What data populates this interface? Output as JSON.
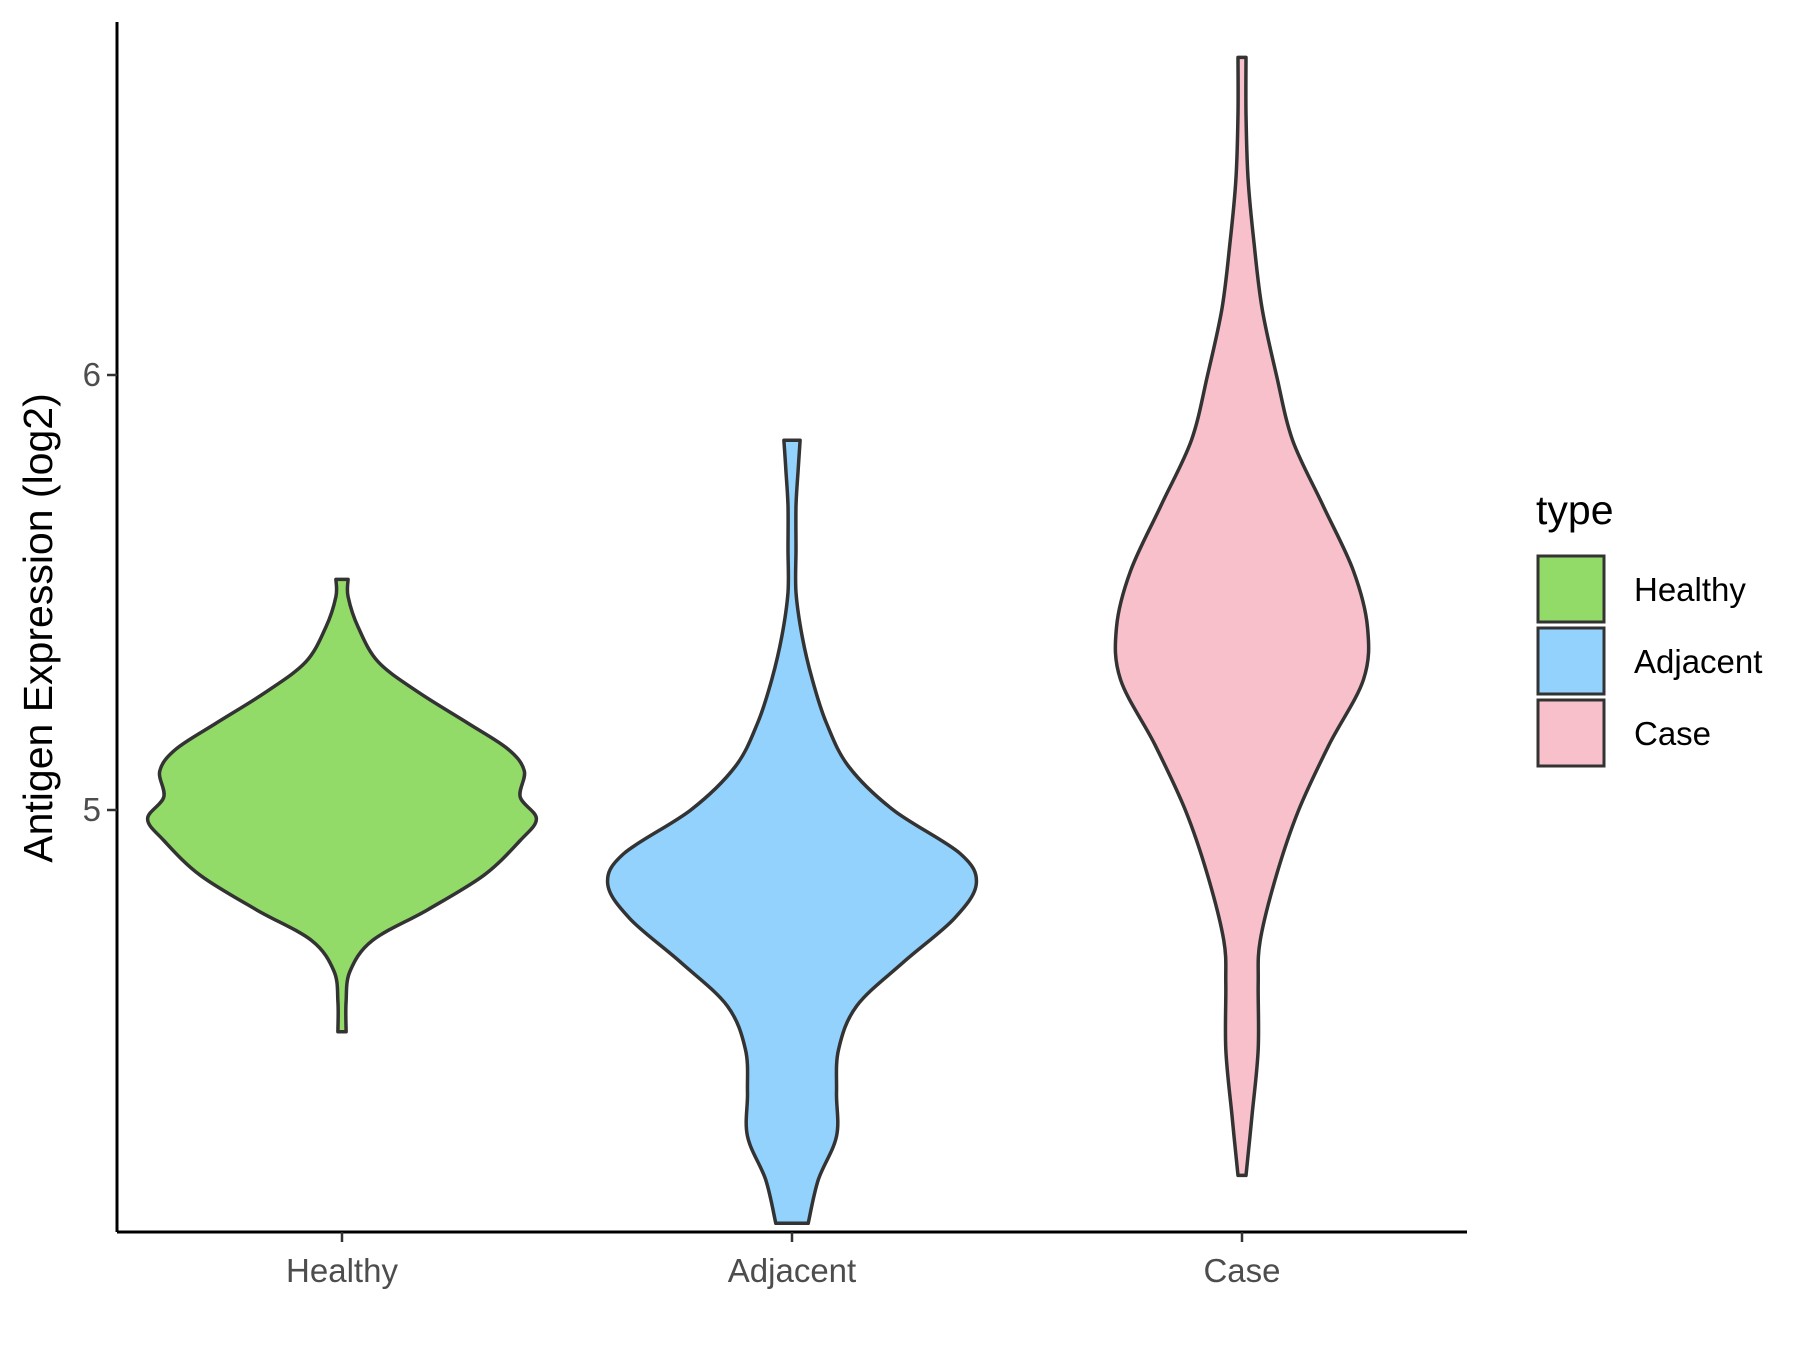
{
  "chart_data": {
    "type": "violin",
    "title": "",
    "xlabel": "",
    "ylabel": "Antigen Expression (log2)",
    "categories": [
      "Healthy",
      "Adjacent",
      "Case"
    ],
    "y_ticks": [
      5,
      6
    ],
    "ylim": [
      4.05,
      6.85
    ],
    "grid": false,
    "legend": {
      "title": "type",
      "position": "right",
      "entries": [
        "Healthy",
        "Adjacent",
        "Case"
      ]
    },
    "colors": {
      "Healthy": "#93DB69",
      "Adjacent": "#92D2FD",
      "Case": "#F7C0CB",
      "outline": "#333333"
    },
    "series": [
      {
        "name": "Healthy",
        "min": 4.49,
        "max": 5.53,
        "density_profile": [
          [
            4.49,
            0.02
          ],
          [
            4.56,
            0.02
          ],
          [
            4.63,
            0.04
          ],
          [
            4.7,
            0.15
          ],
          [
            4.77,
            0.42
          ],
          [
            4.85,
            0.7
          ],
          [
            4.93,
            0.88
          ],
          [
            4.98,
            0.96
          ],
          [
            5.03,
            0.88
          ],
          [
            5.09,
            0.9
          ],
          [
            5.14,
            0.82
          ],
          [
            5.2,
            0.62
          ],
          [
            5.27,
            0.38
          ],
          [
            5.34,
            0.18
          ],
          [
            5.42,
            0.08
          ],
          [
            5.49,
            0.03
          ],
          [
            5.53,
            0.03
          ]
        ]
      },
      {
        "name": "Adjacent",
        "min": 4.05,
        "max": 5.85,
        "density_profile": [
          [
            4.05,
            0.08
          ],
          [
            4.15,
            0.13
          ],
          [
            4.25,
            0.22
          ],
          [
            4.35,
            0.22
          ],
          [
            4.45,
            0.23
          ],
          [
            4.55,
            0.32
          ],
          [
            4.65,
            0.55
          ],
          [
            4.75,
            0.8
          ],
          [
            4.83,
            0.91
          ],
          [
            4.9,
            0.83
          ],
          [
            5.0,
            0.5
          ],
          [
            5.1,
            0.28
          ],
          [
            5.2,
            0.17
          ],
          [
            5.3,
            0.1
          ],
          [
            5.4,
            0.05
          ],
          [
            5.5,
            0.02
          ],
          [
            5.6,
            0.02
          ],
          [
            5.7,
            0.02
          ],
          [
            5.78,
            0.03
          ],
          [
            5.85,
            0.04
          ]
        ]
      },
      {
        "name": "Case",
        "min": 4.16,
        "max": 6.73,
        "density_profile": [
          [
            4.16,
            0.02
          ],
          [
            4.3,
            0.05
          ],
          [
            4.45,
            0.08
          ],
          [
            4.6,
            0.08
          ],
          [
            4.7,
            0.09
          ],
          [
            4.85,
            0.17
          ],
          [
            5.0,
            0.28
          ],
          [
            5.15,
            0.43
          ],
          [
            5.3,
            0.6
          ],
          [
            5.42,
            0.62
          ],
          [
            5.55,
            0.55
          ],
          [
            5.7,
            0.4
          ],
          [
            5.85,
            0.25
          ],
          [
            6.0,
            0.17
          ],
          [
            6.15,
            0.1
          ],
          [
            6.3,
            0.06
          ],
          [
            6.45,
            0.03
          ],
          [
            6.6,
            0.02
          ],
          [
            6.73,
            0.02
          ]
        ]
      }
    ]
  }
}
